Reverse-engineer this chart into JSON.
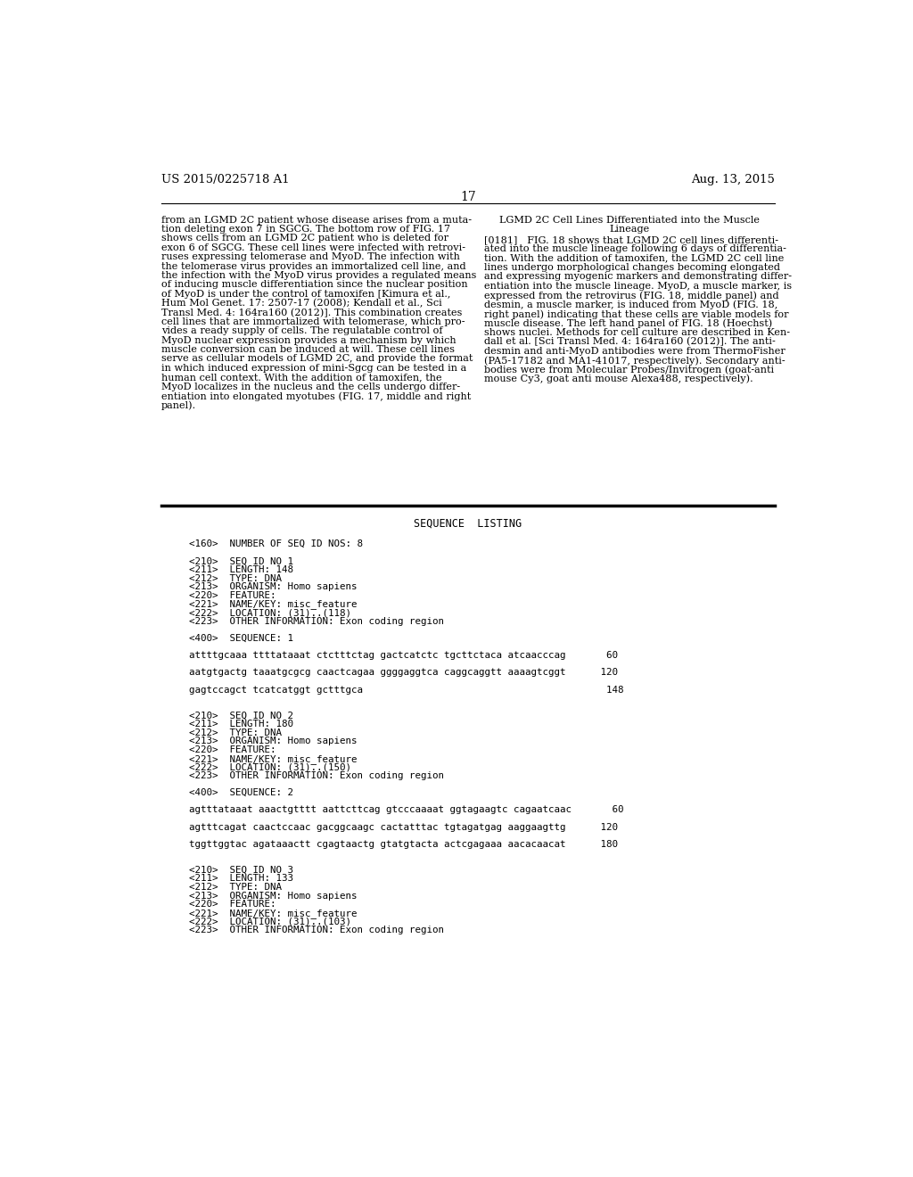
{
  "background_color": "#ffffff",
  "header_left": "US 2015/0225718 A1",
  "header_right": "Aug. 13, 2015",
  "page_number": "17",
  "col1_lines": [
    "from an LGMD 2C patient whose disease arises from a muta-",
    "tion deleting exon 7 in SGCG. The bottom row of FIG. 17",
    "shows cells from an LGMD 2C patient who is deleted for",
    "exon 6 of SGCG. These cell lines were infected with retrovi-",
    "ruses expressing telomerase and MyoD. The infection with",
    "the telomerase virus provides an immortalized cell line, and",
    "the infection with the MyoD virus provides a regulated means",
    "of inducing muscle differentiation since the nuclear position",
    "of MyoD is under the control of tamoxifen [Kimura et al.,",
    "Hum Mol Genet. 17: 2507-17 (2008); Kendall et al., Sci",
    "Transl Med. 4: 164ra160 (2012)]. This combination creates",
    "cell lines that are immortalized with telomerase, which pro-",
    "vides a ready supply of cells. The regulatable control of",
    "MyoD nuclear expression provides a mechanism by which",
    "muscle conversion can be induced at will. These cell lines",
    "serve as cellular models of LGMD 2C, and provide the format",
    "in which induced expression of mini-Sgcg can be tested in a",
    "human cell context. With the addition of tamoxifen, the",
    "MyoD localizes in the nucleus and the cells undergo differ-",
    "entiation into elongated myotubes (FIG. 17, middle and right",
    "panel)."
  ],
  "col2_heading_lines": [
    "LGMD 2C Cell Lines Differentiated into the Muscle",
    "Lineage"
  ],
  "col2_lines": [
    "[0181]   FIG. 18 shows that LGMD 2C cell lines differenti-",
    "ated into the muscle lineage following 6 days of differentia-",
    "tion. With the addition of tamoxifen, the LGMD 2C cell line",
    "lines undergo morphological changes becoming elongated",
    "and expressing myogenic markers and demonstrating differ-",
    "entiation into the muscle lineage. MyoD, a muscle marker, is",
    "expressed from the retrovirus (FIG. 18, middle panel) and",
    "desmin, a muscle marker, is induced from MyoD (FIG. 18,",
    "right panel) indicating that these cells are viable models for",
    "muscle disease. The left hand panel of FIG. 18 (Hoechst)",
    "shows nuclei. Methods for cell culture are described in Ken-",
    "dall et al. [Sci Transl Med. 4: 164ra160 (2012)]. The anti-",
    "desmin and anti-MyoD antibodies were from ThermoFisher",
    "(PA5-17182 and MA1-41017, respectively). Secondary anti-",
    "bodies were from Molecular Probes/Invitrogen (goat-anti",
    "mouse Cy3, goat anti mouse Alexa488, respectively)."
  ],
  "section_title": "SEQUENCE  LISTING",
  "seq_lines": [
    "<160>  NUMBER OF SEQ ID NOS: 8",
    "",
    "<210>  SEQ ID NO 1",
    "<211>  LENGTH: 148",
    "<212>  TYPE: DNA",
    "<213>  ORGANISM: Homo sapiens",
    "<220>  FEATURE:",
    "<221>  NAME/KEY: misc_feature",
    "<222>  LOCATION: (31)..(118)",
    "<223>  OTHER INFORMATION: Exon coding region",
    "",
    "<400>  SEQUENCE: 1",
    "",
    "attttgcaaa ttttataaat ctctttctag gactcatctc tgcttctaca atcaacccag       60",
    "",
    "aatgtgactg taaatgcgcg caactcagaa ggggaggtca caggcaggtt aaaagtcggt      120",
    "",
    "gagtccagct tcatcatggt gctttgca                                          148",
    "",
    "",
    "<210>  SEQ ID NO 2",
    "<211>  LENGTH: 180",
    "<212>  TYPE: DNA",
    "<213>  ORGANISM: Homo sapiens",
    "<220>  FEATURE:",
    "<221>  NAME/KEY: misc_feature",
    "<222>  LOCATION: (31)..(150)",
    "<223>  OTHER INFORMATION: Exon coding region",
    "",
    "<400>  SEQUENCE: 2",
    "",
    "agtttataaat aaactgtttt aattcttcag gtcccaaaat ggtagaagtc cagaatcaac       60",
    "",
    "agtttcagat caactccaac gacggcaagc cactatttac tgtagatgag aaggaagttg      120",
    "",
    "tggttggtac agataaactt cgagtaactg gtatgtacta actcgagaaa aacacaacat      180",
    "",
    "",
    "<210>  SEQ ID NO 3",
    "<211>  LENGTH: 133",
    "<212>  TYPE: DNA",
    "<213>  ORGANISM: Homo sapiens",
    "<220>  FEATURE:",
    "<221>  NAME/KEY: misc_feature",
    "<222>  LOCATION: (31)..(103)",
    "<223>  OTHER INFORMATION: Exon coding region"
  ]
}
